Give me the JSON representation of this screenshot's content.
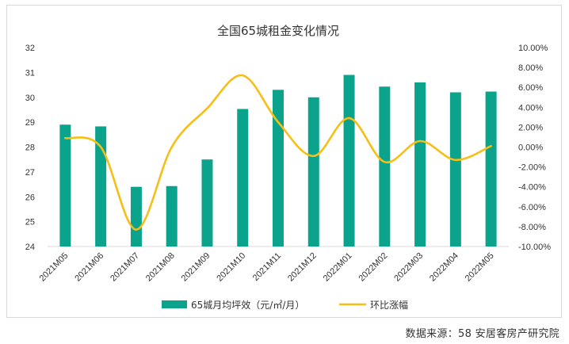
{
  "chart_data": {
    "type": "bar+line",
    "title": "全国65城租金变化情况",
    "categories": [
      "2021M05",
      "2021M06",
      "2021M07",
      "2021M08",
      "2021M09",
      "2021M10",
      "2021M11",
      "2021M12",
      "2022M01",
      "2022M02",
      "2022M03",
      "2022M04",
      "2022M05"
    ],
    "y_left": {
      "min": 24,
      "max": 32,
      "step": 1,
      "ticks": [
        "24",
        "25",
        "26",
        "27",
        "28",
        "29",
        "30",
        "31",
        "32"
      ]
    },
    "y_right": {
      "min": -10,
      "max": 10,
      "step": 2,
      "ticks": [
        "-10.00%",
        "-8.00%",
        "-6.00%",
        "-4.00%",
        "-2.00%",
        "0.00%",
        "2.00%",
        "4.00%",
        "6.00%",
        "8.00%",
        "10.00%"
      ]
    },
    "series": [
      {
        "name": "65城月均坪效（元/㎡/月）",
        "kind": "bar",
        "axis": "left",
        "color": "#0ba38c",
        "values": [
          28.9,
          28.83,
          26.4,
          26.43,
          27.5,
          29.53,
          30.3,
          30.0,
          30.9,
          30.43,
          30.6,
          30.2,
          30.23
        ]
      },
      {
        "name": "环比涨幅",
        "kind": "line",
        "axis": "right",
        "color": "#f7be16",
        "values": [
          0.9,
          0.0,
          -8.3,
          0.0,
          3.9,
          7.2,
          2.5,
          -0.9,
          2.9,
          -1.5,
          0.6,
          -1.3,
          0.1
        ]
      }
    ],
    "legend_position": "bottom",
    "grid": false
  },
  "source_note": "数据来源：58 安居客房产研究院"
}
